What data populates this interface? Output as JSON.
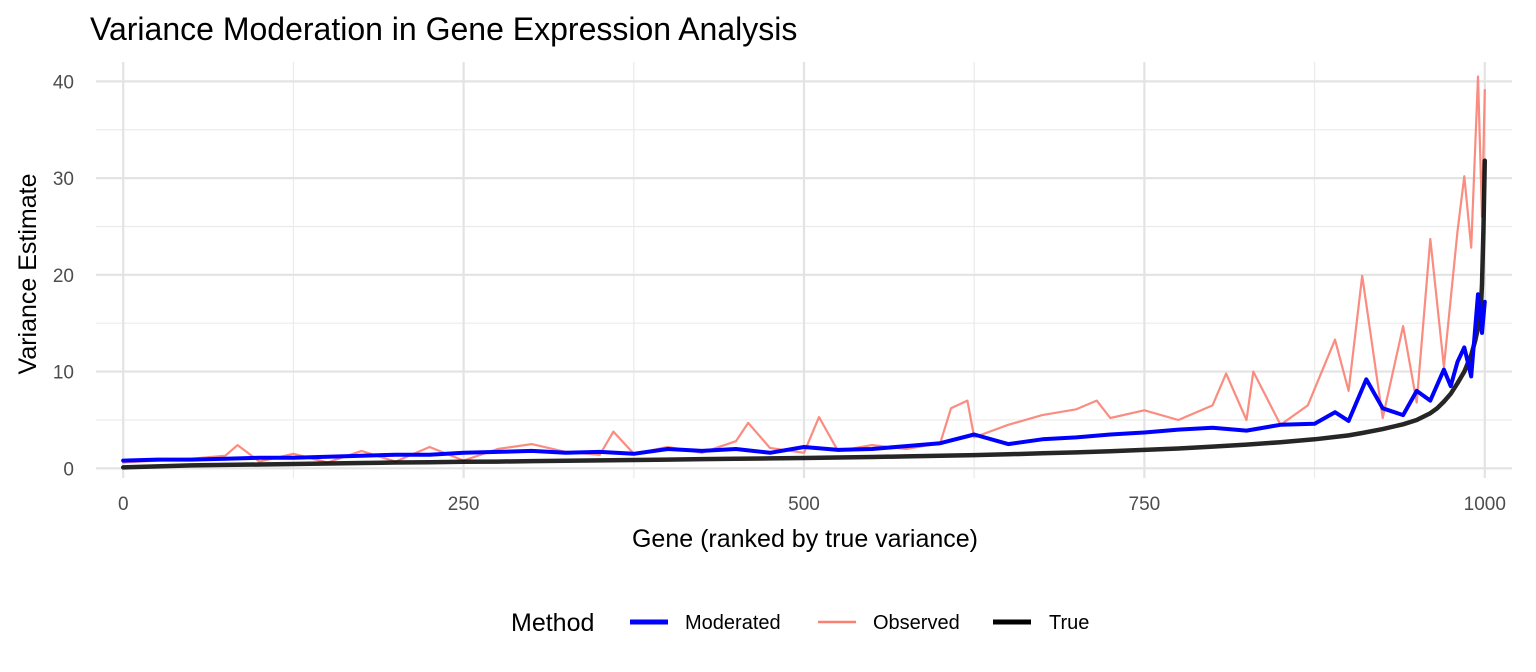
{
  "chart_data": {
    "type": "line",
    "title": "Variance Moderation in Gene Expression Analysis",
    "xlabel": "Gene (ranked by true variance)",
    "ylabel": "Variance Estimate",
    "xlim": [
      -20,
      1020
    ],
    "ylim": [
      -1,
      42
    ],
    "x_ticks": [
      0,
      250,
      500,
      750,
      1000
    ],
    "y_ticks": [
      0,
      10,
      20,
      30,
      40
    ],
    "x_tick_labels": [
      "0",
      "250",
      "500",
      "750",
      "1000"
    ],
    "y_tick_labels": [
      "0",
      "10",
      "20",
      "30",
      "40"
    ],
    "grid": true,
    "legend": {
      "title": "Method",
      "position": "bottom",
      "entries": [
        "Moderated",
        "Observed",
        "True"
      ]
    },
    "series": [
      {
        "name": "Observed",
        "color": "#FA8072",
        "x": [
          0,
          25,
          50,
          75,
          84,
          100,
          125,
          150,
          175,
          200,
          225,
          250,
          275,
          300,
          325,
          350,
          360,
          375,
          400,
          425,
          450,
          459,
          475,
          500,
          511,
          525,
          550,
          575,
          600,
          608,
          620,
          625,
          650,
          675,
          700,
          715,
          725,
          750,
          775,
          800,
          810,
          825,
          830,
          850,
          870,
          890,
          900,
          910,
          925,
          940,
          950,
          960,
          970,
          980,
          985,
          990,
          995,
          998,
          1000
        ],
        "y": [
          0.6,
          0.8,
          1.0,
          1.3,
          2.4,
          0.7,
          1.5,
          0.6,
          1.8,
          0.7,
          2.2,
          0.8,
          2.0,
          2.5,
          1.7,
          1.4,
          3.8,
          1.5,
          2.2,
          1.6,
          2.8,
          4.7,
          2.1,
          1.6,
          5.3,
          1.8,
          2.4,
          2.0,
          2.6,
          6.2,
          7.0,
          3.2,
          4.5,
          5.5,
          6.1,
          7.0,
          5.2,
          6.0,
          5.0,
          6.5,
          9.8,
          5.0,
          10.0,
          4.5,
          6.5,
          13.3,
          8.0,
          19.9,
          5.2,
          14.7,
          6.8,
          23.7,
          10.5,
          24.5,
          30.2,
          22.8,
          40.5,
          26.0,
          39.1
        ]
      },
      {
        "name": "Moderated",
        "color": "#0000FF",
        "x": [
          0,
          25,
          50,
          75,
          100,
          125,
          150,
          175,
          200,
          225,
          250,
          275,
          300,
          325,
          350,
          375,
          400,
          425,
          450,
          475,
          500,
          525,
          550,
          575,
          600,
          625,
          650,
          675,
          700,
          725,
          750,
          775,
          800,
          825,
          850,
          875,
          890,
          900,
          913,
          925,
          940,
          950,
          960,
          970,
          975,
          980,
          985,
          990,
          995,
          998,
          1000
        ],
        "y": [
          0.8,
          0.9,
          0.9,
          1.0,
          1.1,
          1.1,
          1.2,
          1.3,
          1.4,
          1.4,
          1.6,
          1.7,
          1.8,
          1.6,
          1.7,
          1.5,
          2.0,
          1.8,
          2.0,
          1.6,
          2.2,
          1.9,
          2.0,
          2.3,
          2.6,
          3.5,
          2.5,
          3.0,
          3.2,
          3.5,
          3.7,
          4.0,
          4.2,
          3.9,
          4.5,
          4.6,
          5.8,
          4.9,
          9.2,
          6.2,
          5.5,
          8.0,
          7.0,
          10.2,
          8.5,
          11.0,
          12.5,
          9.5,
          18.0,
          14.0,
          17.2
        ]
      },
      {
        "name": "True",
        "color": "#000000",
        "x": [
          0,
          25,
          50,
          75,
          100,
          125,
          150,
          175,
          200,
          225,
          250,
          275,
          300,
          325,
          350,
          375,
          400,
          425,
          450,
          475,
          500,
          525,
          550,
          575,
          600,
          625,
          650,
          675,
          700,
          725,
          750,
          775,
          800,
          825,
          850,
          875,
          900,
          910,
          925,
          940,
          950,
          960,
          965,
          970,
          975,
          980,
          985,
          990,
          993,
          995,
          997,
          998,
          999,
          1000
        ],
        "y": [
          0.1,
          0.2,
          0.3,
          0.35,
          0.4,
          0.45,
          0.5,
          0.55,
          0.6,
          0.63,
          0.67,
          0.7,
          0.75,
          0.78,
          0.82,
          0.86,
          0.9,
          0.95,
          1.0,
          1.03,
          1.07,
          1.12,
          1.17,
          1.23,
          1.3,
          1.37,
          1.45,
          1.55,
          1.65,
          1.76,
          1.9,
          2.05,
          2.25,
          2.45,
          2.7,
          3.0,
          3.4,
          3.65,
          4.05,
          4.55,
          5.0,
          5.7,
          6.2,
          6.9,
          7.7,
          8.8,
          10.0,
          11.7,
          13.2,
          14.5,
          16.3,
          19.0,
          24.5,
          31.8
        ]
      }
    ]
  }
}
